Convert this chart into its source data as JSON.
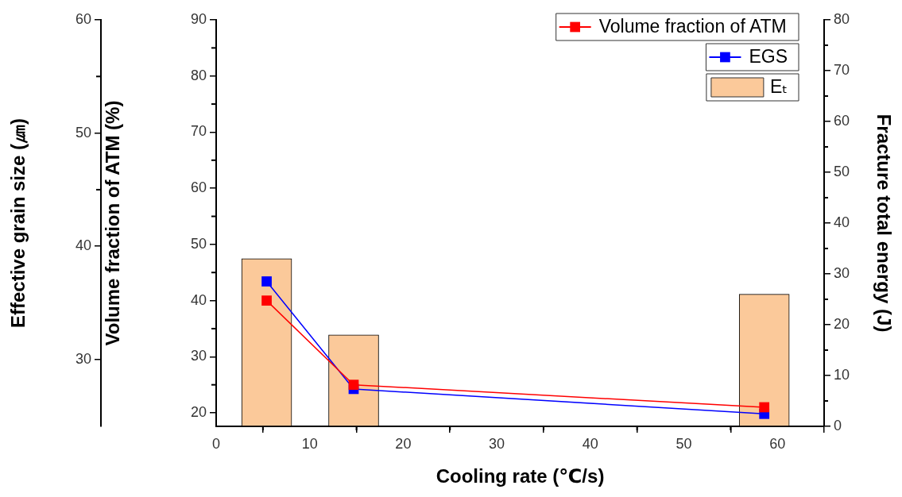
{
  "chart_data": {
    "type": "line",
    "xlabel": "Cooling rate (℃/s)",
    "ylabel": "Volume fraction of ATM (%)",
    "y2label": "Fracture total energy (J)",
    "y3label": "Effective grain size (㎛)",
    "x": [
      5.4,
      14.7,
      58.6
    ],
    "series": [
      {
        "name": "Volume fraction of ATM",
        "color": "#ff0000",
        "values": [
          40,
          25,
          21
        ]
      },
      {
        "name": "EGS",
        "axis": "y3",
        "color": "#0000ff",
        "values": [
          36.9,
          27.4,
          25.2
        ]
      },
      {
        "name": "Eₜ",
        "type": "bar",
        "axis": "y2",
        "color": "#fbc99a",
        "values": [
          33,
          18,
          26
        ]
      }
    ],
    "xlim": [
      0,
      65
    ],
    "xticks": [
      0,
      {
        "value": 5,
        "label": null
      },
      10,
      {
        "value": 15,
        "label": null
      },
      20,
      {
        "value": 25,
        "label": null
      },
      30,
      {
        "value": 35,
        "label": null
      },
      40,
      {
        "value": 45,
        "label": null
      },
      50,
      {
        "value": 55,
        "label": null
      },
      60
    ],
    "ylim": [
      17.6,
      90
    ],
    "yticks": [
      20,
      {
        "value": 25,
        "label": null
      },
      30,
      {
        "value": 35,
        "label": null
      },
      40,
      {
        "value": 45,
        "label": null
      },
      50,
      {
        "value": 55,
        "label": null
      },
      60,
      {
        "value": 65,
        "label": null
      },
      70,
      {
        "value": 75,
        "label": null
      },
      80,
      {
        "value": 85,
        "label": null
      },
      90
    ],
    "y2lim": [
      0,
      80
    ],
    "y2ticks": [
      0,
      {
        "value": 5,
        "label": null
      },
      10,
      {
        "value": 15,
        "label": null
      },
      20,
      {
        "value": 25,
        "label": null
      },
      30,
      {
        "value": 35,
        "label": null
      },
      40,
      {
        "value": 45,
        "label": null
      },
      50,
      {
        "value": 55,
        "label": null
      },
      60,
      {
        "value": 65,
        "label": null
      },
      70,
      {
        "value": 75,
        "label": null
      },
      80
    ],
    "y3lim": [
      24.1,
      60
    ],
    "y3ticks": [
      30,
      40,
      {
        "value": 45,
        "label": null
      },
      50,
      {
        "value": 55,
        "label": null
      },
      60
    ],
    "marker": "square",
    "grid": false,
    "legend": "top right"
  }
}
